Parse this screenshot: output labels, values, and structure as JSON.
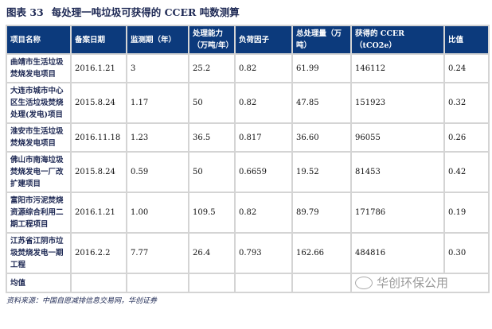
{
  "title": {
    "label": "图表 33",
    "text": "每处理一吨垃圾可获得的 CCER 吨数测算"
  },
  "table": {
    "headers": [
      "项目名称",
      "备案日期",
      "监测期（年）",
      "处理能力（万吨/年）",
      "负荷因子",
      "总处理量（万吨）",
      "获得的 CCER（tCO2e）",
      "比值"
    ],
    "rows": [
      [
        "曲靖市生活垃圾焚烧发电项目",
        "2016.1.21",
        "3",
        "25.2",
        "0.82",
        "61.99",
        "146112",
        "0.24"
      ],
      [
        "大连市城市中心区生活垃圾焚烧处理(发电)项目",
        "2015.8.24",
        "1.17",
        "50",
        "0.82",
        "47.85",
        "151923",
        "0.32"
      ],
      [
        "淮安市生活垃圾焚烧发电项目",
        "2016.11.18",
        "1.23",
        "36.5",
        "0.817",
        "36.60",
        "96055",
        "0.26"
      ],
      [
        "佛山市南海垃圾焚烧发电一厂改扩建项目",
        "2015.8.24",
        "0.59",
        "50",
        "0.6659",
        "19.52",
        "81453",
        "0.42"
      ],
      [
        "富阳市污泥焚烧资源综合利用二期工程项目",
        "2016.1.21",
        "1.00",
        "109.5",
        "0.82",
        "89.79",
        "171786",
        "0.19"
      ],
      [
        "江苏省江阴市垃圾焚烧发电一期工程",
        "2016.2.2",
        "7.77",
        "26.4",
        "0.793",
        "162.66",
        "484816",
        "0.30"
      ],
      [
        "均值",
        "",
        "",
        "",
        "",
        "",
        "",
        ""
      ]
    ]
  },
  "source": "资料来源：中国自愿减排信息交易网，华创证券",
  "watermark": {
    "icon": "wechat-icon",
    "text": "华创环保公用"
  },
  "colors": {
    "header_bg": "#0c3a7c",
    "title": "#1f2a55"
  }
}
